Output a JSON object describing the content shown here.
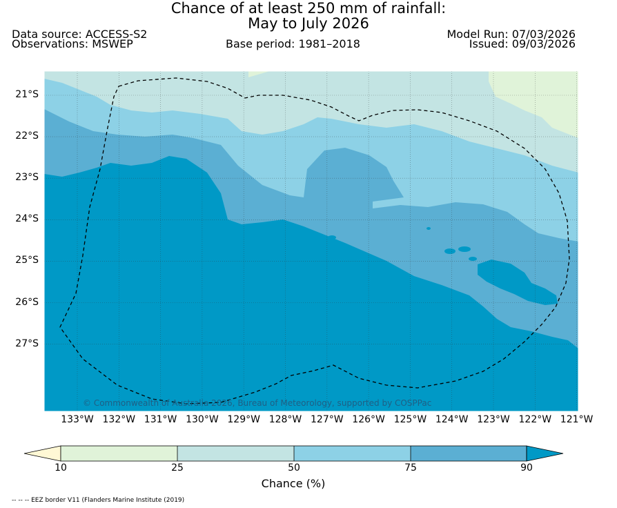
{
  "header": {
    "title_line1": "Chance of at least 250 mm of rainfall:",
    "title_line2": "May to July 2026",
    "data_source": "Data source: ACCESS-S2",
    "observations": "Observations: MSWEP",
    "base_period": "Base period: 1981–2018",
    "model_run": "Model Run: 07/03/2026",
    "issued": "Issued: 09/03/2026"
  },
  "map": {
    "lat_labels": [
      "21°S",
      "22°S",
      "23°S",
      "24°S",
      "25°S",
      "26°S",
      "27°S"
    ],
    "lon_labels": [
      "133°W",
      "132°W",
      "131°W",
      "130°W",
      "129°W",
      "128°W",
      "127°W",
      "126°W",
      "125°W",
      "124°W",
      "123°W",
      "122°W",
      "121°W"
    ],
    "copyright": "© Commonwealth of Australia 2026, Bureau of Meteorology, supported by COSPPac",
    "colors": {
      "lt10": "#fff8d5",
      "c10_25": "#e0f3d9",
      "c25_50": "#c3e4e3",
      "c50_75": "#8dd1e6",
      "c75_90": "#5bafd3",
      "gt90": "#0099c6"
    }
  },
  "colorbar": {
    "ticks": [
      "10",
      "25",
      "50",
      "75",
      "90"
    ],
    "label": "Chance (%)"
  },
  "footer": {
    "eez_note": "-- -- -- EEZ border V11 (Flanders Marine Institute (2019)"
  }
}
